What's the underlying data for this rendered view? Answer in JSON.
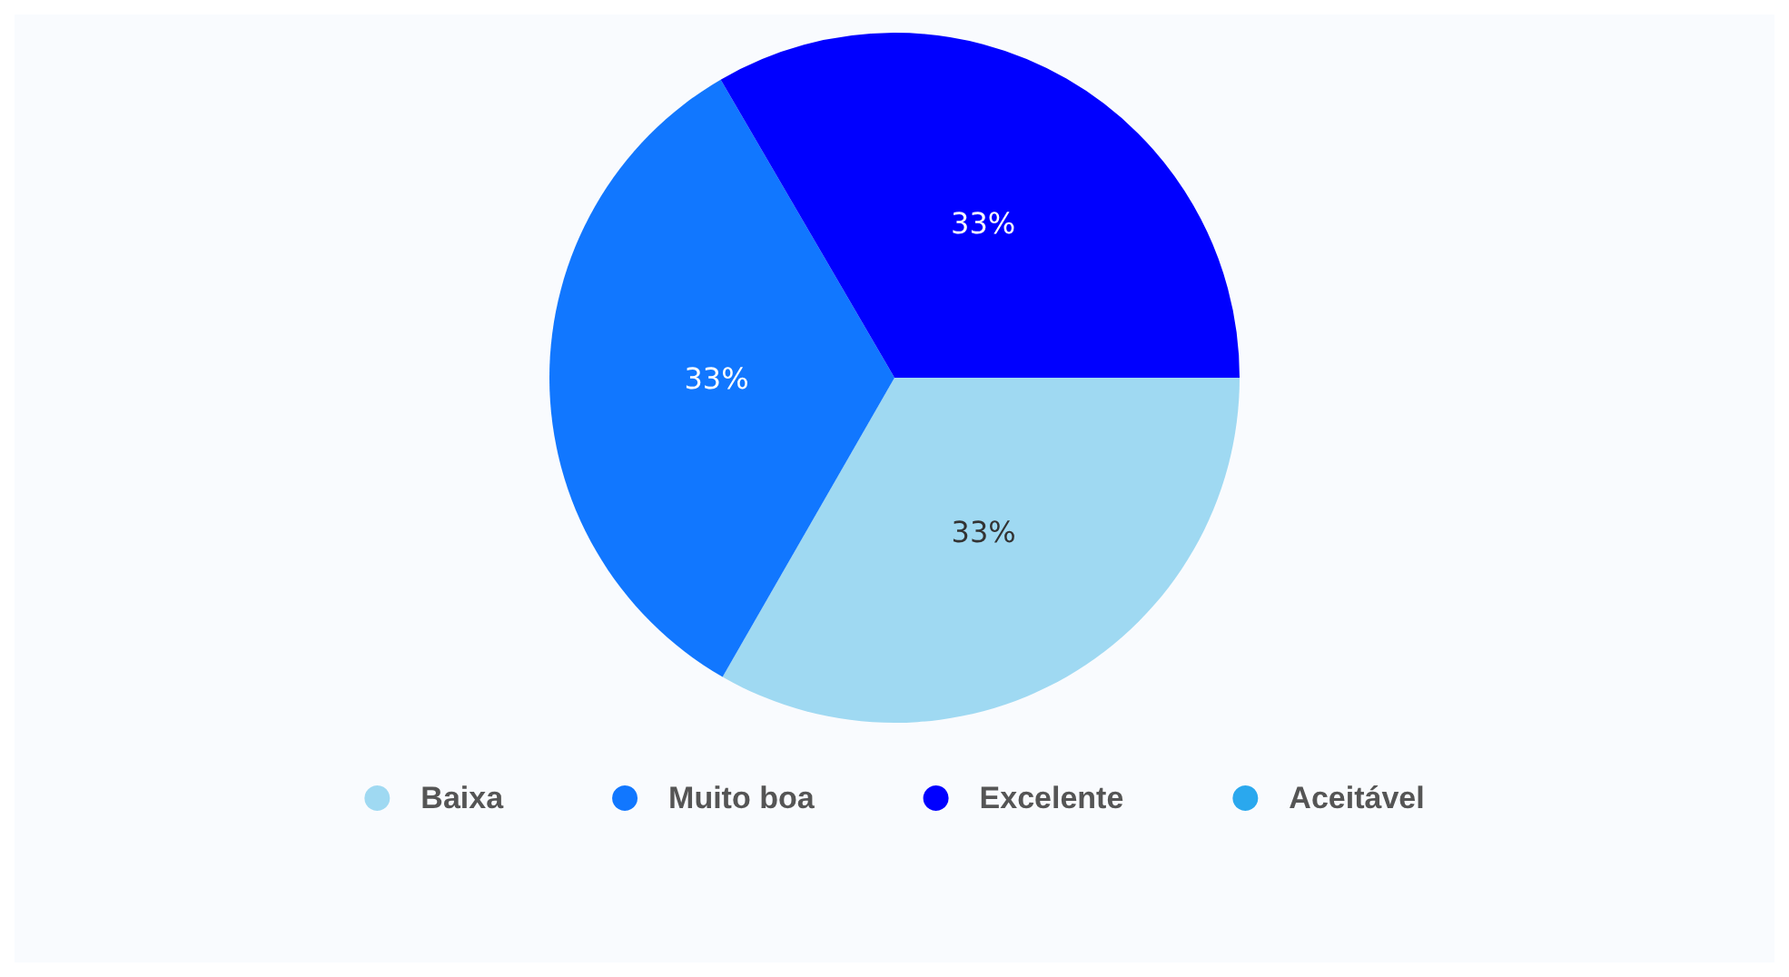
{
  "chart_data": {
    "type": "pie",
    "categories": [
      "Baixa",
      "Muito boa",
      "Excelente",
      "Aceitável"
    ],
    "values": [
      33.3,
      33.3,
      33.4,
      0
    ],
    "colors": [
      "#9fd9f2",
      "#1177ff",
      "#0000ff",
      "#2aa8ee"
    ],
    "value_labels": [
      "33%",
      "33%",
      "33%",
      null
    ],
    "legend": "bottom"
  }
}
